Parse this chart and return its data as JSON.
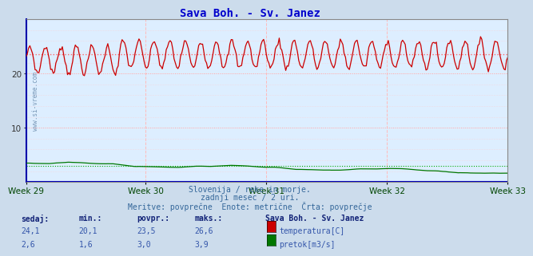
{
  "title": "Sava Boh. - Sv. Janez",
  "title_color": "#0000cc",
  "title_fontsize": 10,
  "bg_color": "#ccdcec",
  "plot_bg_color": "#ddeeff",
  "x_label_color": "#004400",
  "grid_color_h": "#ffaaaa",
  "grid_color_v": "#ffbbbb",
  "watermark": "www.si-vreme.com",
  "temp_color": "#cc0000",
  "temp_avg_color": "#ff6666",
  "flow_color": "#007700",
  "flow_avg_color": "#00aa00",
  "blue_line_color": "#0000bb",
  "ylim": [
    0,
    30
  ],
  "n_points": 372,
  "weeks": [
    "Week 29",
    "Week 30",
    "Week 31",
    "Week 32",
    "Week 33"
  ],
  "temp_min": 20.1,
  "temp_max": 26.6,
  "temp_avg": 23.5,
  "temp_current": 24.1,
  "flow_min": 1.6,
  "flow_max": 3.9,
  "flow_avg": 3.0,
  "flow_current": 2.6,
  "subtitle1": "Slovenija / reke in morje.",
  "subtitle2": "zadnji mesec / 2 uri.",
  "subtitle3": "Meritve: povprečne  Enote: metrične  Črta: povprečje",
  "legend_title": "Sava Boh. - Sv. Janez",
  "label_temp": "temperatura[C]",
  "label_flow": "pretok[m3/s]",
  "col_sedaj": "sedaj:",
  "col_min": "min.:",
  "col_povpr": "povpr.:",
  "col_maks": "maks.:",
  "text_color_blue": "#3355aa",
  "bold_color": "#112277"
}
